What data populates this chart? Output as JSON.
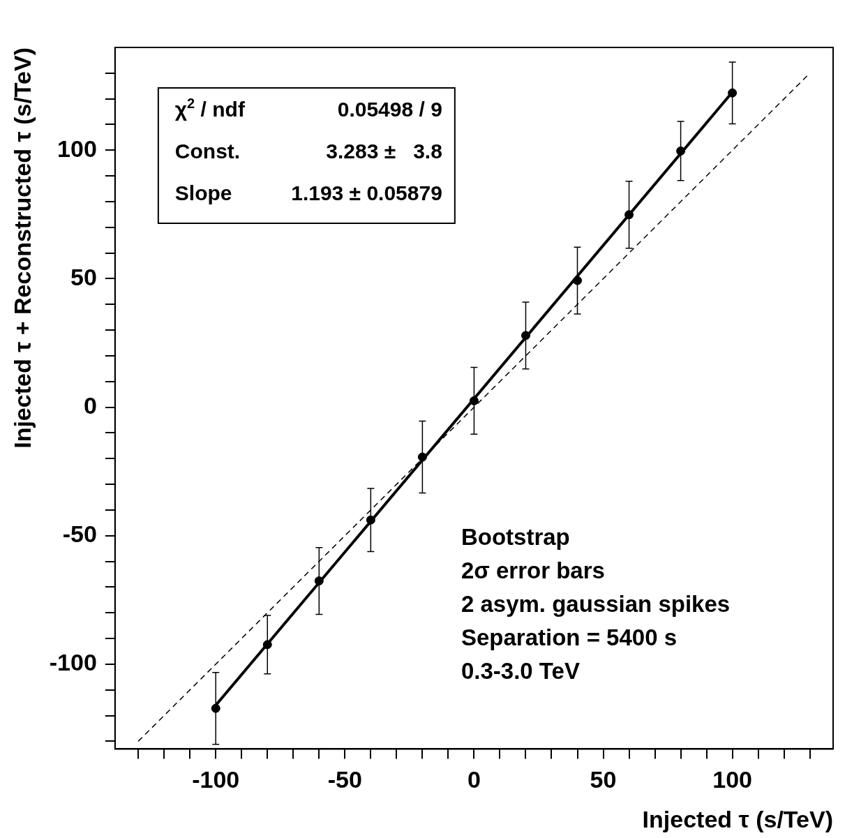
{
  "chart_data": {
    "type": "scatter",
    "xlabel": "Injected τ (s/TeV)",
    "ylabel": "Injected τ + Reconstructed τ (s/TeV)",
    "xlim": [
      -139,
      139
    ],
    "ylim": [
      -133,
      140
    ],
    "xticks": [
      {
        "value": -130,
        "label": null
      },
      {
        "value": -120,
        "label": null
      },
      {
        "value": -110,
        "label": null
      },
      -100,
      {
        "value": -90,
        "label": null
      },
      {
        "value": -80,
        "label": null
      },
      {
        "value": -70,
        "label": null
      },
      {
        "value": -60,
        "label": null
      },
      -50,
      {
        "value": -40,
        "label": null
      },
      {
        "value": -30,
        "label": null
      },
      {
        "value": -20,
        "label": null
      },
      {
        "value": -10,
        "label": null
      },
      0,
      {
        "value": 10,
        "label": null
      },
      {
        "value": 20,
        "label": null
      },
      {
        "value": 30,
        "label": null
      },
      {
        "value": 40,
        "label": null
      },
      50,
      {
        "value": 60,
        "label": null
      },
      {
        "value": 70,
        "label": null
      },
      {
        "value": 80,
        "label": null
      },
      {
        "value": 90,
        "label": null
      },
      100,
      {
        "value": 110,
        "label": null
      },
      {
        "value": 120,
        "label": null
      },
      {
        "value": 130,
        "label": null
      }
    ],
    "yticks": [
      {
        "value": -130,
        "label": null
      },
      {
        "value": -120,
        "label": null
      },
      {
        "value": -110,
        "label": null
      },
      -100,
      {
        "value": -90,
        "label": null
      },
      {
        "value": -80,
        "label": null
      },
      {
        "value": -70,
        "label": null
      },
      {
        "value": -60,
        "label": null
      },
      -50,
      {
        "value": -40,
        "label": null
      },
      {
        "value": -30,
        "label": null
      },
      {
        "value": -20,
        "label": null
      },
      {
        "value": -10,
        "label": null
      },
      0,
      {
        "value": 10,
        "label": null
      },
      {
        "value": 20,
        "label": null
      },
      {
        "value": 30,
        "label": null
      },
      {
        "value": 40,
        "label": null
      },
      50,
      {
        "value": 60,
        "label": null
      },
      {
        "value": 70,
        "label": null
      },
      {
        "value": 80,
        "label": null
      },
      {
        "value": 90,
        "label": null
      },
      100,
      {
        "value": 110,
        "label": null
      },
      {
        "value": 120,
        "label": null
      },
      {
        "value": 130,
        "label": null
      }
    ],
    "series": [
      {
        "type": "scatter",
        "marker": "circle",
        "color": "#000000",
        "x": [
          -100,
          -80,
          -60,
          -40,
          -20,
          0,
          20,
          40,
          60,
          80,
          100
        ],
        "values": [
          -117.2,
          -92.4,
          -67.6,
          -43.9,
          -19.4,
          2.5,
          27.9,
          49.3,
          74.9,
          99.7,
          122.3
        ],
        "errors": [
          14,
          11.4,
          13,
          12.3,
          14,
          13,
          13,
          13,
          13,
          11.5,
          12
        ]
      },
      {
        "type": "line",
        "marker": "none",
        "color": "#000000",
        "line_style": "solid",
        "x": [
          -100,
          100
        ],
        "values": [
          -116.0,
          122.6
        ]
      },
      {
        "type": "line",
        "marker": "none",
        "color": "#000000",
        "line_style": "dashed",
        "x": [
          -130,
          130
        ],
        "values": [
          -130,
          130
        ]
      }
    ],
    "annotations": [
      "χ$^{2}$ / ndf",
      "0.05498 / 9",
      "Const.",
      "3.283 ±   3.8",
      "Slope",
      "1.193 ± 0.05879",
      "Bootstrap",
      "2σ error bars",
      "2 asym. gaussian spikes",
      "Separation = 5400 s",
      "0.3-3.0 TeV"
    ]
  }
}
